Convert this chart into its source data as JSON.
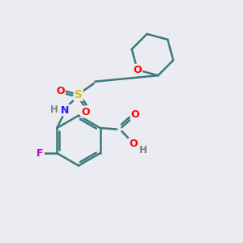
{
  "bg_color": "#ebebf2",
  "atom_colors": {
    "C": "#3a7a7a",
    "N": "#2020ee",
    "O": "#ff0000",
    "S": "#cccc00",
    "F": "#cc00cc",
    "H": "#808080"
  },
  "bond_color": "#3a7a7a",
  "bond_width": 1.8
}
